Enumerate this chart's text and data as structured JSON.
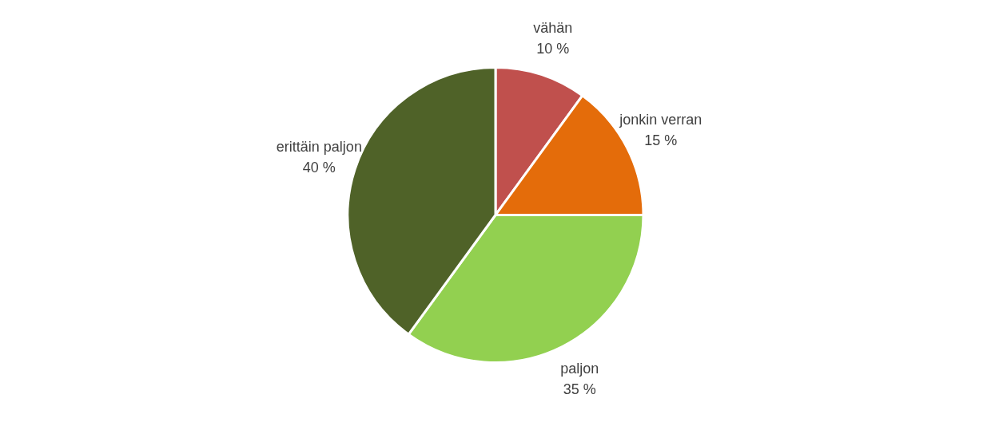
{
  "chart_data": {
    "type": "pie",
    "categories": [
      "vähän",
      "jonkin verran",
      "paljon",
      "erittäin paljon"
    ],
    "values": [
      10,
      15,
      35,
      40
    ],
    "colors": [
      "#c0504d",
      "#e46c0a",
      "#92d050",
      "#4f6228"
    ],
    "value_labels": [
      "10 %",
      "15 %",
      "35 %",
      "40 %"
    ],
    "legend": false
  }
}
